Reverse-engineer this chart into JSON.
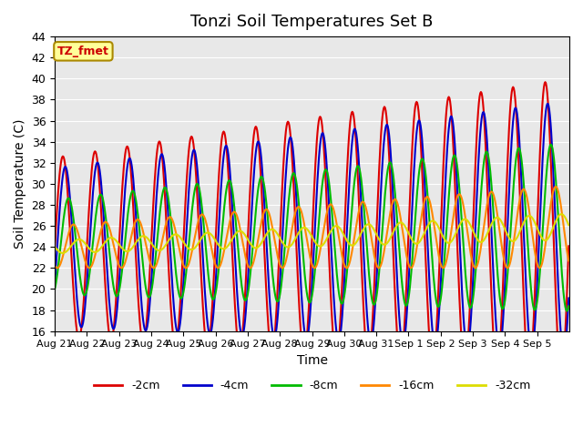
{
  "title": "Tonzi Soil Temperatures Set B",
  "xlabel": "Time",
  "ylabel": "Soil Temperature (C)",
  "ylim": [
    16,
    44
  ],
  "yticks": [
    16,
    18,
    20,
    22,
    24,
    26,
    28,
    30,
    32,
    34,
    36,
    38,
    40,
    42,
    44
  ],
  "bg_color": "#e8e8e8",
  "fig_color": "#ffffff",
  "label_box_text": "TZ_fmet",
  "label_box_facecolor": "#ffff99",
  "label_box_edgecolor": "#aa8800",
  "label_box_textcolor": "#cc0000",
  "lines": {
    "-2cm": {
      "color": "#dd0000",
      "lw": 1.5
    },
    "-4cm": {
      "color": "#0000cc",
      "lw": 1.5
    },
    "-8cm": {
      "color": "#00bb00",
      "lw": 1.5
    },
    "-16cm": {
      "color": "#ff8800",
      "lw": 1.5
    },
    "-32cm": {
      "color": "#dddd00",
      "lw": 1.5
    }
  },
  "points_per_day": 48,
  "x_tick_labels": [
    "Aug 21",
    "Aug 22",
    "Aug 23",
    "Aug 24",
    "Aug 25",
    "Aug 26",
    "Aug 27",
    "Aug 28",
    "Aug 29",
    "Aug 30",
    "Aug 31",
    "Sep 1",
    "Sep 2",
    "Sep 3",
    "Sep 4",
    "Sep 5"
  ]
}
